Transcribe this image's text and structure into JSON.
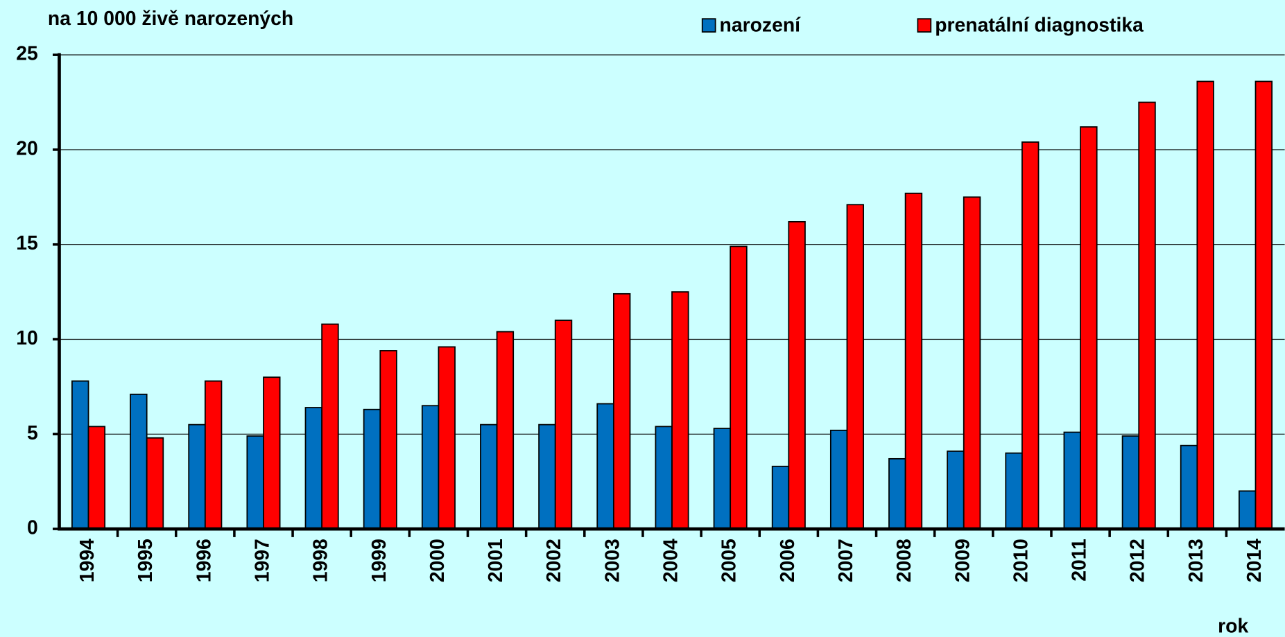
{
  "chart_data": {
    "type": "bar",
    "y_label": "na 10 000 živě narozených",
    "x_label": "rok",
    "categories": [
      "1994",
      "1995",
      "1996",
      "1997",
      "1998",
      "1999",
      "2000",
      "2001",
      "2002",
      "2003",
      "2004",
      "2005",
      "2006",
      "2007",
      "2008",
      "2009",
      "2010",
      "2011",
      "2012",
      "2013",
      "2014"
    ],
    "series": [
      {
        "name": "narození",
        "color": "#0070c0",
        "values": [
          7.8,
          7.1,
          5.5,
          4.9,
          6.4,
          6.3,
          6.5,
          5.5,
          5.5,
          6.6,
          5.4,
          5.3,
          3.3,
          5.2,
          3.7,
          4.1,
          4.0,
          5.1,
          4.9,
          4.4,
          2.0
        ]
      },
      {
        "name": "prenatální diagnostika",
        "color": "#ff0000",
        "values": [
          5.4,
          4.8,
          7.8,
          8.0,
          10.8,
          9.4,
          9.6,
          10.4,
          11.0,
          12.4,
          12.5,
          14.9,
          16.2,
          17.1,
          17.7,
          17.5,
          20.4,
          21.2,
          22.5,
          23.6,
          23.6
        ]
      }
    ],
    "ylim": [
      0,
      25
    ],
    "yticks": [
      0,
      5,
      10,
      15,
      20,
      25
    ],
    "grid": true,
    "legend": "top"
  }
}
